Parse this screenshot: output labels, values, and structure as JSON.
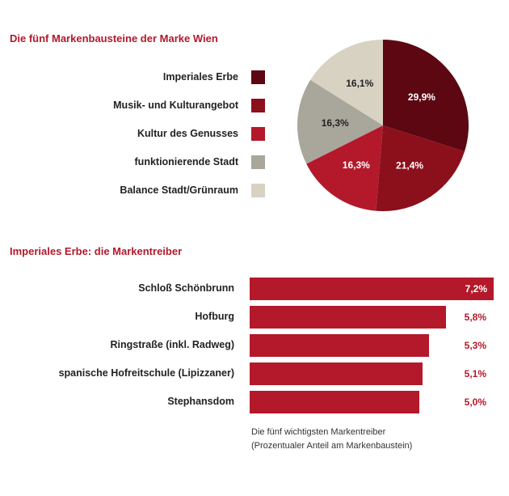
{
  "chart_data": [
    {
      "type": "pie",
      "title": "Die fünf Markenbausteine der Marke Wien",
      "labels": [
        "Imperiales Erbe",
        "Musik- und Kulturangebot",
        "Kultur des Genusses",
        "funktionierende Stadt",
        "Balance Stadt/Grünraum"
      ],
      "values": [
        29.9,
        21.4,
        16.3,
        16.3,
        16.1
      ],
      "value_labels": [
        "29,9%",
        "21,4%",
        "16,3%",
        "16,3%",
        "16,1%"
      ],
      "colors": [
        "#5c0711",
        "#8c0f1c",
        "#b3192a",
        "#a9a79b",
        "#d8d2c2"
      ],
      "label_colors": [
        "#ffffff",
        "#ffffff",
        "#ffffff",
        "#222222",
        "#222222"
      ],
      "legend_position": "left"
    },
    {
      "type": "bar",
      "orientation": "horizontal",
      "title": "Imperiales Erbe: die Markentreiber",
      "categories": [
        "Schloß Schönbrunn",
        "Hofburg",
        "Ringstraße (inkl. Radweg)",
        "spanische Hofreitschule (Lipizzaner)",
        "Stephansdom"
      ],
      "values": [
        7.2,
        5.8,
        5.3,
        5.1,
        5.0
      ],
      "value_labels": [
        "7,2%",
        "5,8%",
        "5,3%",
        "5,1%",
        "5,0%"
      ],
      "bar_color": "#b3192a",
      "caption_line1": "Die fünf wichtigsten Markentreiber",
      "caption_line2": "(Prozentualer Anteil am Markenbaustein)"
    }
  ]
}
